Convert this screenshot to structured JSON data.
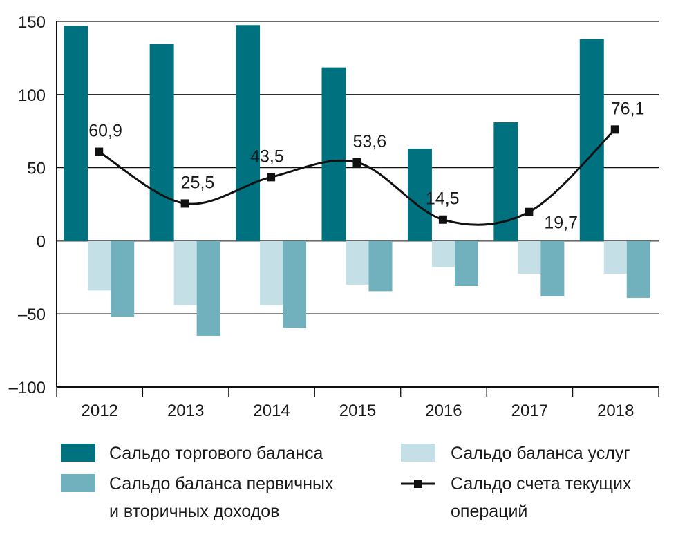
{
  "chart_data": {
    "type": "bar",
    "title": "",
    "xlabel": "",
    "ylabel": "",
    "ylim": [
      -100,
      150
    ],
    "yticks": [
      "150",
      "100",
      "50",
      "0",
      "–50",
      "–100"
    ],
    "ytick_values": [
      150,
      100,
      50,
      0,
      -50,
      -100
    ],
    "categories": [
      "2012",
      "2013",
      "2014",
      "2015",
      "2016",
      "2017",
      "2018"
    ],
    "grid": true,
    "legend_position": "bottom",
    "series": [
      {
        "name": "Сальдо торгового баланса",
        "type": "bar",
        "color": "#00727f",
        "values": [
          147,
          134.5,
          147.5,
          118.5,
          63,
          81,
          138
        ]
      },
      {
        "name": "Сальдо баланса услуг",
        "type": "bar",
        "color": "#c5dfe6",
        "values": [
          -34,
          -44,
          -44,
          -30,
          -18,
          -22.5,
          -22.5
        ]
      },
      {
        "name": "Сальдо баланса первичных и вторичных доходов",
        "type": "bar",
        "color": "#71b0bd",
        "values": [
          -52,
          -65,
          -59.5,
          -34.5,
          -31,
          -38,
          -39
        ]
      },
      {
        "name": "Сальдо счета текущих операций",
        "type": "line",
        "color": "#111111",
        "values": [
          60.9,
          25.5,
          43.5,
          53.6,
          14.5,
          19.7,
          76.1
        ],
        "labels": [
          "60,9",
          "25,5",
          "43,5",
          "53,6",
          "14,5",
          "19,7",
          "76,1"
        ]
      }
    ],
    "legend": {
      "trade": "Сальдо торгового баланса",
      "services": "Сальдо баланса услуг",
      "income_line1": "Сальдо баланса первичных",
      "income_line2": "и вторичных доходов",
      "current_line1": "Сальдо счета текущих",
      "current_line2": "операций"
    }
  }
}
